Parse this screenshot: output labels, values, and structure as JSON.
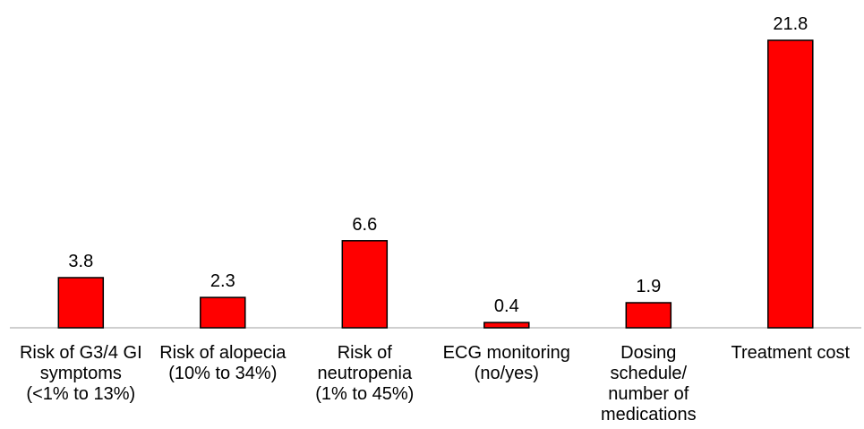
{
  "chart_data": {
    "type": "bar",
    "categories": [
      [
        "Risk of G3/4 GI",
        "symptoms",
        "(<1% to 13%)"
      ],
      [
        "Risk of alopecia",
        "(10% to 34%)"
      ],
      [
        "Risk of",
        "neutropenia",
        "(1% to 45%)"
      ],
      [
        "ECG monitoring",
        "(no/yes)"
      ],
      [
        "Dosing",
        "schedule/",
        "number of",
        "medications"
      ],
      [
        "Treatment cost"
      ]
    ],
    "values": [
      3.8,
      2.3,
      6.6,
      0.4,
      1.9,
      21.8
    ],
    "value_labels": [
      "3.8",
      "2.3",
      "6.6",
      "0.4",
      "1.9",
      "21.8"
    ],
    "title": "",
    "xlabel": "",
    "ylabel": "",
    "ylim": [
      0,
      21.8
    ],
    "grid": false,
    "legend": "none",
    "colors": {
      "bar_fill": "#ff0000",
      "bar_stroke": "#000000",
      "axis": "#bfbfbf"
    }
  }
}
